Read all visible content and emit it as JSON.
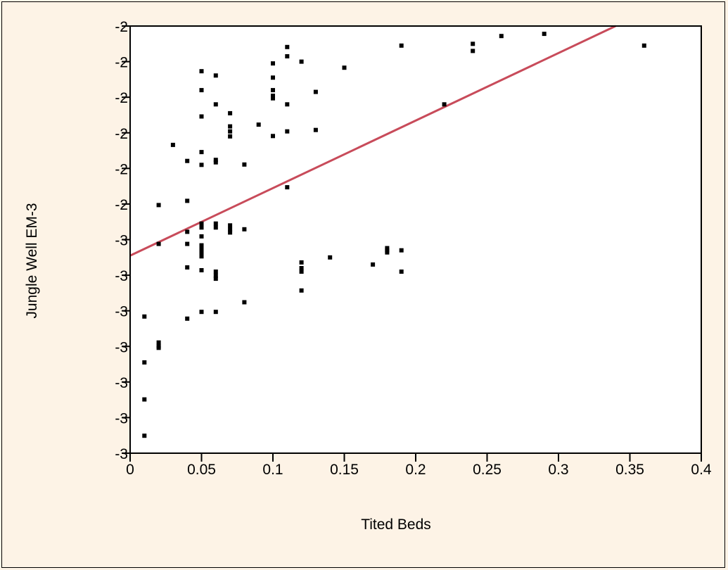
{
  "chart_data": {
    "type": "scatter",
    "title": "",
    "xlabel": "Tited Beds",
    "ylabel": "Jungle Well EM-3",
    "xlim": [
      0,
      0.4
    ],
    "ylim": [
      -3.2,
      -2.0
    ],
    "x_ticks": [
      {
        "value": 0,
        "label": "0"
      },
      {
        "value": 0.05,
        "label": "0.05"
      },
      {
        "value": 0.1,
        "label": "0.1"
      },
      {
        "value": 0.15,
        "label": "0.15"
      },
      {
        "value": 0.2,
        "label": "0.2"
      },
      {
        "value": 0.25,
        "label": "0.25"
      },
      {
        "value": 0.3,
        "label": "0.3"
      },
      {
        "value": 0.35,
        "label": "0.35"
      },
      {
        "value": 0.4,
        "label": "0.4"
      }
    ],
    "y_ticks": [
      {
        "value": -2.0,
        "label": "-2"
      },
      {
        "value": -2.1,
        "label": "-2"
      },
      {
        "value": -2.2,
        "label": "-2"
      },
      {
        "value": -2.3,
        "label": "-2"
      },
      {
        "value": -2.4,
        "label": "-2"
      },
      {
        "value": -2.5,
        "label": "-2"
      },
      {
        "value": -2.6,
        "label": "-3"
      },
      {
        "value": -2.7,
        "label": "-3"
      },
      {
        "value": -2.8,
        "label": "-3"
      },
      {
        "value": -2.9,
        "label": "-3"
      },
      {
        "value": -3.0,
        "label": "-3"
      },
      {
        "value": -3.1,
        "label": "-3"
      },
      {
        "value": -3.2,
        "label": "-3"
      }
    ],
    "grid": false,
    "legend": "none",
    "colors": {
      "points": "#000000",
      "fit_line": "#c84b5a",
      "background": "#fdf3e6",
      "plot_background": "#ffffff"
    },
    "series": [
      {
        "points": [
          [
            0.01,
            -2.816
          ],
          [
            0.01,
            -2.945
          ],
          [
            0.01,
            -3.049
          ],
          [
            0.01,
            -3.151
          ],
          [
            0.02,
            -2.889
          ],
          [
            0.02,
            -2.899
          ],
          [
            0.02,
            -2.904
          ],
          [
            0.02,
            -2.612
          ],
          [
            0.02,
            -2.503
          ],
          [
            0.03,
            -2.334
          ],
          [
            0.04,
            -2.379
          ],
          [
            0.04,
            -2.491
          ],
          [
            0.04,
            -2.578
          ],
          [
            0.04,
            -2.612
          ],
          [
            0.04,
            -2.678
          ],
          [
            0.04,
            -2.822
          ],
          [
            0.05,
            -2.127
          ],
          [
            0.05,
            -2.18
          ],
          [
            0.05,
            -2.254
          ],
          [
            0.05,
            -2.354
          ],
          [
            0.05,
            -2.39
          ],
          [
            0.05,
            -2.555
          ],
          [
            0.05,
            -2.566
          ],
          [
            0.05,
            -2.591
          ],
          [
            0.05,
            -2.616
          ],
          [
            0.05,
            -2.626
          ],
          [
            0.05,
            -2.636
          ],
          [
            0.05,
            -2.647
          ],
          [
            0.05,
            -2.686
          ],
          [
            0.05,
            -2.803
          ],
          [
            0.06,
            -2.139
          ],
          [
            0.06,
            -2.22
          ],
          [
            0.06,
            -2.376
          ],
          [
            0.06,
            -2.383
          ],
          [
            0.06,
            -2.555
          ],
          [
            0.06,
            -2.566
          ],
          [
            0.06,
            -2.69
          ],
          [
            0.06,
            -2.701
          ],
          [
            0.06,
            -2.71
          ],
          [
            0.06,
            -2.803
          ],
          [
            0.07,
            -2.245
          ],
          [
            0.07,
            -2.282
          ],
          [
            0.07,
            -2.296
          ],
          [
            0.07,
            -2.31
          ],
          [
            0.07,
            -2.56
          ],
          [
            0.07,
            -2.571
          ],
          [
            0.07,
            -2.58
          ],
          [
            0.08,
            -2.389
          ],
          [
            0.08,
            -2.571
          ],
          [
            0.08,
            -2.776
          ],
          [
            0.09,
            -2.277
          ],
          [
            0.1,
            -2.105
          ],
          [
            0.1,
            -2.145
          ],
          [
            0.1,
            -2.18
          ],
          [
            0.1,
            -2.196
          ],
          [
            0.1,
            -2.203
          ],
          [
            0.1,
            -2.309
          ],
          [
            0.11,
            -2.059
          ],
          [
            0.11,
            -2.085
          ],
          [
            0.11,
            -2.22
          ],
          [
            0.11,
            -2.296
          ],
          [
            0.11,
            -2.453
          ],
          [
            0.12,
            -2.1
          ],
          [
            0.12,
            -2.664
          ],
          [
            0.12,
            -2.68
          ],
          [
            0.12,
            -2.69
          ],
          [
            0.12,
            -2.743
          ],
          [
            0.13,
            -2.185
          ],
          [
            0.13,
            -2.292
          ],
          [
            0.14,
            -2.65
          ],
          [
            0.15,
            -2.117
          ],
          [
            0.17,
            -2.67
          ],
          [
            0.18,
            -2.624
          ],
          [
            0.18,
            -2.63
          ],
          [
            0.18,
            -2.636
          ],
          [
            0.19,
            -2.055
          ],
          [
            0.19,
            -2.63
          ],
          [
            0.19,
            -2.69
          ],
          [
            0.22,
            -2.22
          ],
          [
            0.24,
            -2.05
          ],
          [
            0.24,
            -2.07
          ],
          [
            0.26,
            -2.028
          ],
          [
            0.29,
            -2.022
          ],
          [
            0.36,
            -2.055
          ]
        ]
      }
    ],
    "fit_line": {
      "x": [
        0,
        0.34
      ],
      "y": [
        -2.645,
        -2.0
      ]
    }
  }
}
